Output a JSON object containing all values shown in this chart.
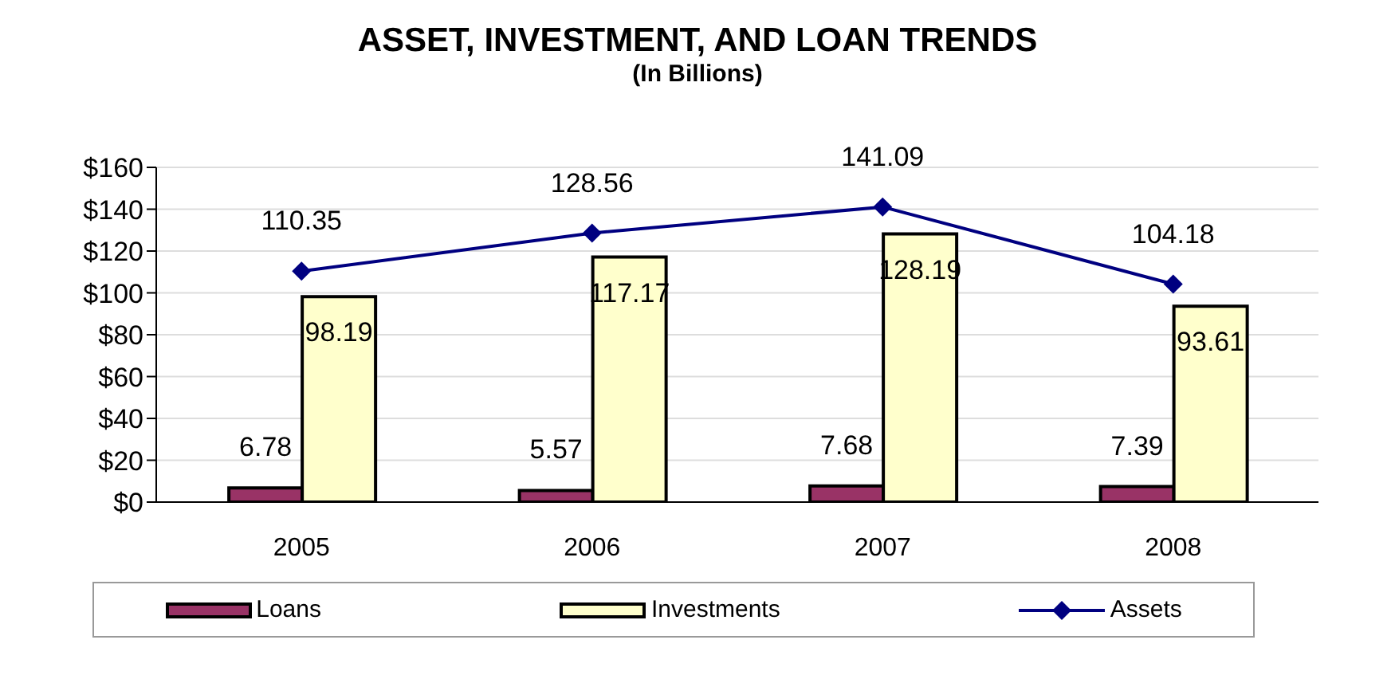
{
  "chart_data": {
    "type": "bar",
    "title": "ASSET, INVESTMENT, AND LOAN TRENDS",
    "subtitle": "(In Billions)",
    "categories": [
      "2005",
      "2006",
      "2007",
      "2008"
    ],
    "series": [
      {
        "name": "Loans",
        "color": "#993366",
        "values": [
          6.78,
          5.57,
          7.68,
          7.39
        ]
      },
      {
        "name": "Investments",
        "color": "#ffffcc",
        "values": [
          98.19,
          117.17,
          128.19,
          93.61
        ]
      },
      {
        "name": "Assets",
        "type": "line",
        "color": "#000080",
        "marker": "diamond",
        "values": [
          110.35,
          128.56,
          141.09,
          104.18
        ]
      }
    ],
    "ylim": [
      0,
      160
    ],
    "yticks": [
      {
        "value": 0,
        "label": "$0"
      },
      {
        "value": 20,
        "label": "$20"
      },
      {
        "value": 40,
        "label": "$40"
      },
      {
        "value": 60,
        "label": "$60"
      },
      {
        "value": 80,
        "label": "$80"
      },
      {
        "value": 100,
        "label": "$100"
      },
      {
        "value": 120,
        "label": "$120"
      },
      {
        "value": 140,
        "label": "$140"
      },
      {
        "value": 160,
        "label": "$160"
      }
    ],
    "grid": "y",
    "legend": "bottom",
    "data_labels": true
  }
}
